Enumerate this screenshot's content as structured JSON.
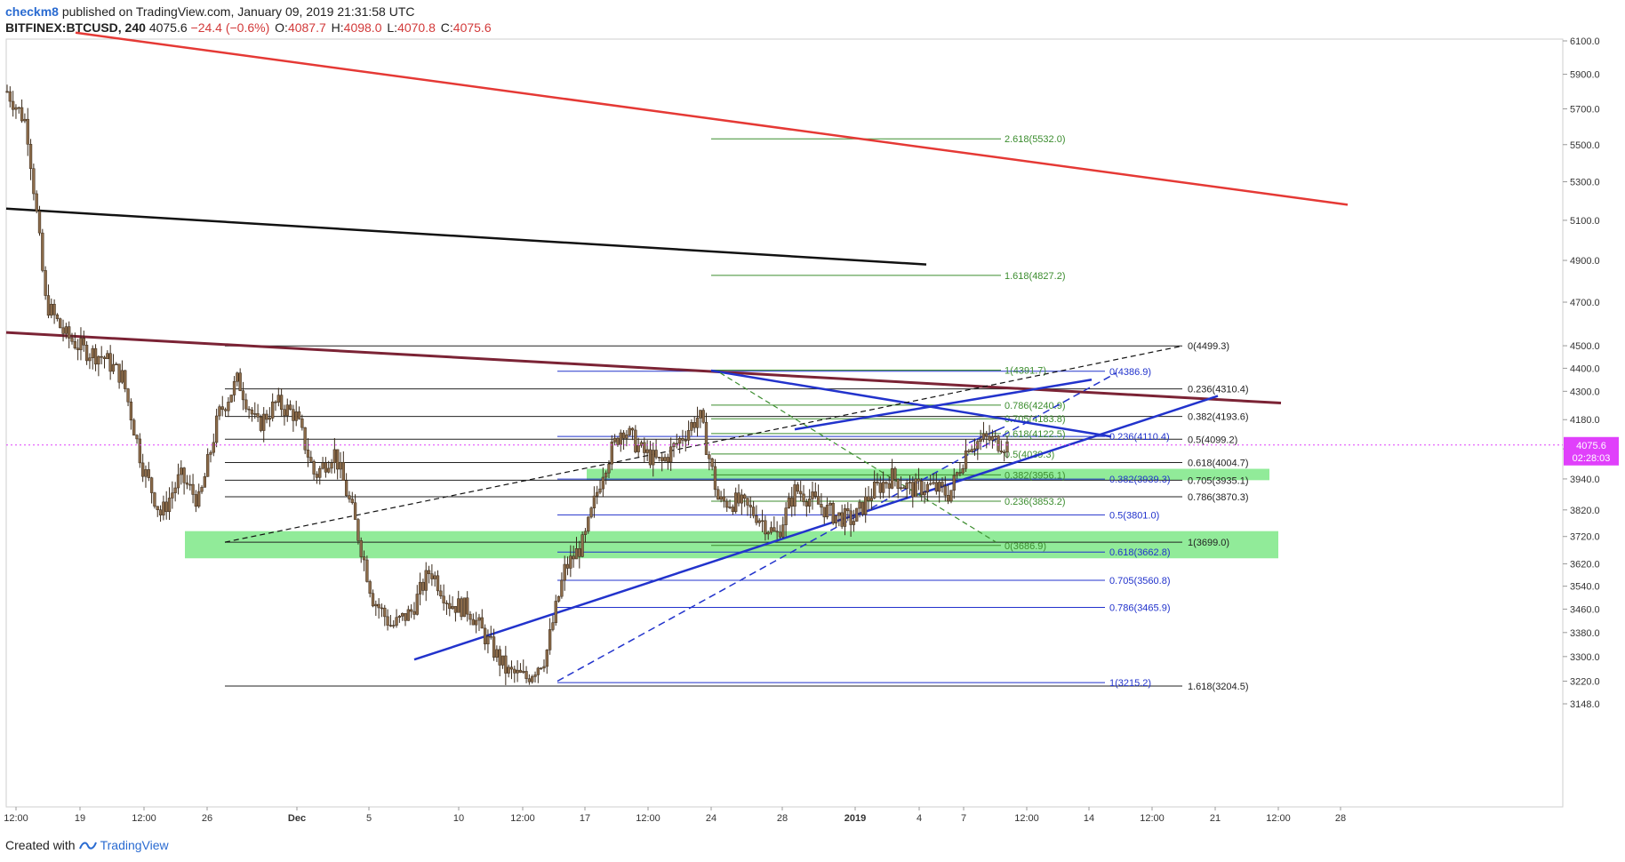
{
  "header": {
    "author": "checkm8",
    "published_text": "published on TradingView.com, January 09, 2019 21:31:58 UTC",
    "symbol": "BITFINEX:BTCUSD, 240",
    "last": "4075.6",
    "change": "−24.4 (−0.6%)",
    "o_label": "O:",
    "o_value": "4087.7",
    "h_label": "H:",
    "h_value": "4098.0",
    "l_label": "L:",
    "l_value": "4070.8",
    "c_label": "C:",
    "c_value": "4075.6"
  },
  "footer": {
    "created_with": "Created with",
    "brand": "TradingView",
    "logo_icon": "tradingview-logo-icon"
  },
  "price_tag": {
    "price": "4075.6",
    "countdown": "02:28:03",
    "color": "#e040fb"
  },
  "colors": {
    "candle_body": "#8b6b4a",
    "red_line": "#e53935",
    "black_line": "#111111",
    "maroon_line": "#7b2335",
    "blue_line": "#2233cc",
    "green_zone": "#7ee787",
    "fib_green": "#3c8d2f",
    "fib_blue": "#2233cc",
    "fib_black": "#222222"
  },
  "chart_data": {
    "type": "candlestick",
    "title": "BITFINEX:BTCUSD, 240",
    "y_axis": {
      "ticks": [
        "6100.0",
        "5900.0",
        "5700.0",
        "5500.0",
        "5300.0",
        "5100.0",
        "4900.0",
        "4700.0",
        "4500.0",
        "4400.0",
        "4300.0",
        "4180.0",
        "4060.0",
        "3940.0",
        "3820.0",
        "3720.0",
        "3620.0",
        "3540.0",
        "3460.0",
        "3380.0",
        "3300.0",
        "3220.0",
        "3148.0"
      ],
      "scale": "log"
    },
    "x_axis": {
      "ticks": [
        "12:00",
        "19",
        "12:00",
        "26",
        "Dec",
        "5",
        "10",
        "12:00",
        "17",
        "12:00",
        "24",
        "28",
        "2019",
        "4",
        "7",
        "12:00",
        "14",
        "12:00",
        "21",
        "12:00",
        "28"
      ]
    },
    "close_approx": [
      {
        "t": "Nov 18 12:00",
        "c": 5800
      },
      {
        "t": "Nov 19",
        "c": 5620
      },
      {
        "t": "Nov 20",
        "c": 4700
      },
      {
        "t": "Nov 20 12:00",
        "c": 4550
      },
      {
        "t": "Nov 21",
        "c": 4480
      },
      {
        "t": "Nov 22",
        "c": 4450
      },
      {
        "t": "Nov 23",
        "c": 4360
      },
      {
        "t": "Nov 24",
        "c": 4000
      },
      {
        "t": "Nov 25",
        "c": 3800
      },
      {
        "t": "Nov 26",
        "c": 3950
      },
      {
        "t": "Nov 27",
        "c": 3850
      },
      {
        "t": "Nov 28",
        "c": 4200
      },
      {
        "t": "Nov 29",
        "c": 4350
      },
      {
        "t": "Nov 30",
        "c": 4150
      },
      {
        "t": "Dec 1",
        "c": 4250
      },
      {
        "t": "Dec 2",
        "c": 4200
      },
      {
        "t": "Dec 3",
        "c": 3950
      },
      {
        "t": "Dec 4",
        "c": 4050
      },
      {
        "t": "Dec 5",
        "c": 3800
      },
      {
        "t": "Dec 6",
        "c": 3500
      },
      {
        "t": "Dec 7",
        "c": 3400
      },
      {
        "t": "Dec 8",
        "c": 3450
      },
      {
        "t": "Dec 10",
        "c": 3600
      },
      {
        "t": "Dec 11",
        "c": 3480
      },
      {
        "t": "Dec 12",
        "c": 3460
      },
      {
        "t": "Dec 13",
        "c": 3350
      },
      {
        "t": "Dec 14",
        "c": 3250
      },
      {
        "t": "Dec 15",
        "c": 3230
      },
      {
        "t": "Dec 16",
        "c": 3300
      },
      {
        "t": "Dec 17",
        "c": 3600
      },
      {
        "t": "Dec 18",
        "c": 3700
      },
      {
        "t": "Dec 19",
        "c": 3980
      },
      {
        "t": "Dec 20",
        "c": 4150
      },
      {
        "t": "Dec 21",
        "c": 4050
      },
      {
        "t": "Dec 22",
        "c": 4000
      },
      {
        "t": "Dec 23",
        "c": 4100
      },
      {
        "t": "Dec 24",
        "c": 4200
      },
      {
        "t": "Dec 25",
        "c": 3850
      },
      {
        "t": "Dec 26",
        "c": 3850
      },
      {
        "t": "Dec 27",
        "c": 3800
      },
      {
        "t": "Dec 28",
        "c": 3720
      },
      {
        "t": "Dec 29",
        "c": 3900
      },
      {
        "t": "Dec 30",
        "c": 3850
      },
      {
        "t": "Dec 31",
        "c": 3800
      },
      {
        "t": "Jan 1",
        "c": 3780
      },
      {
        "t": "Jan 2",
        "c": 3890
      },
      {
        "t": "Jan 3",
        "c": 3950
      },
      {
        "t": "Jan 4",
        "c": 3900
      },
      {
        "t": "Jan 5",
        "c": 3910
      },
      {
        "t": "Jan 6",
        "c": 3880
      },
      {
        "t": "Jan 7",
        "c": 4080
      },
      {
        "t": "Jan 8",
        "c": 4100
      },
      {
        "t": "Jan 9",
        "c": 4075.6
      }
    ],
    "trendlines": [
      {
        "name": "red-resistance",
        "color": "#e53935"
      },
      {
        "name": "black-long-line",
        "color": "#111111"
      },
      {
        "name": "maroon-line",
        "color": "#7b2335"
      }
    ],
    "fib_labels": {
      "green": [
        "2.618(5532.0)",
        "1.618(4827.2)",
        "1(4391.7)",
        "0.786(4240.9)",
        "0.705(4183.8)",
        "0.618(4122.5)",
        "0.5(4039.3)",
        "0.382(3956.1)",
        "0.236(3853.2)",
        "0(3686.9)"
      ],
      "black": [
        "0(4499.3)",
        "0.236(4310.4)",
        "0.382(4193.6)",
        "0.5(4099.2)",
        "0.618(4004.7)",
        "0.705(3935.1)",
        "0.786(3870.3)",
        "1(3699.0)",
        "1.618(3204.5)"
      ],
      "blue": [
        "0(4386.9)",
        "0.236(4110.4)",
        "0.382(3939.3)",
        "0.5(3801.0)",
        "0.618(3662.8)",
        "0.705(3560.8)",
        "0.786(3465.9)",
        "1(3215.2)"
      ]
    },
    "zones": [
      {
        "name": "upper-support-zone",
        "from": 3935,
        "to": 3980
      },
      {
        "name": "lower-support-zone",
        "from": 3640,
        "to": 3740
      }
    ],
    "grid": false
  }
}
